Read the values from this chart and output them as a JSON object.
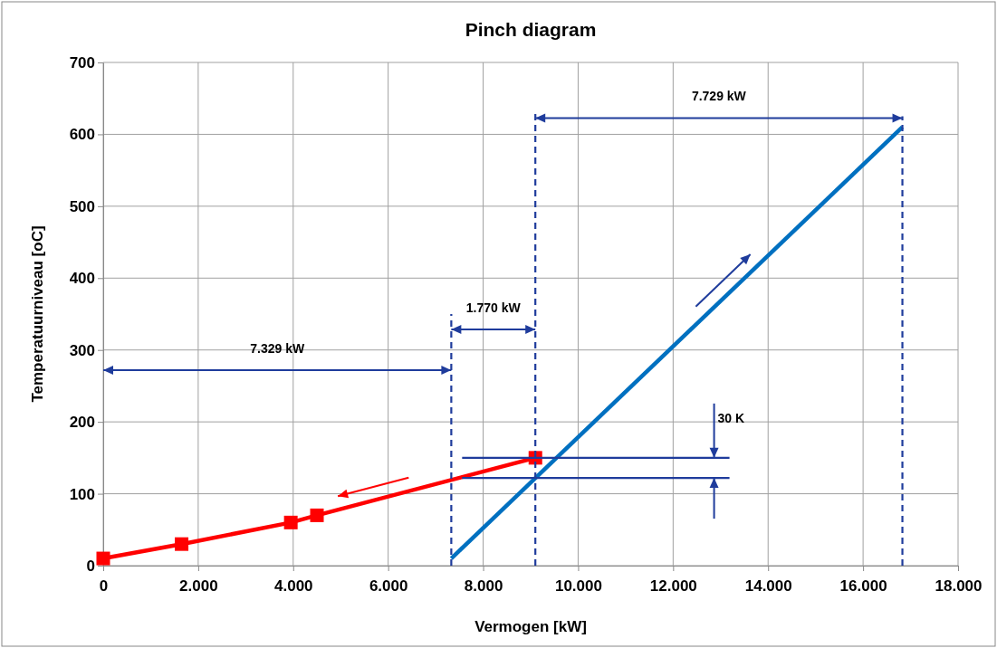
{
  "chart_data": {
    "type": "line",
    "title": "Pinch diagram",
    "xlabel": "Vermogen [kW]",
    "ylabel": "Temperatuurniveau [oC]",
    "xlim": [
      0,
      18000
    ],
    "xticks": [
      0,
      {
        "value": 2000,
        "label": "2.000"
      },
      {
        "value": 4000,
        "label": "4.000"
      },
      {
        "value": 6000,
        "label": "6.000"
      },
      {
        "value": 8000,
        "label": "8.000"
      },
      {
        "value": 10000,
        "label": "10.000"
      },
      {
        "value": 12000,
        "label": "12.000"
      },
      {
        "value": 14000,
        "label": "14.000"
      },
      {
        "value": 16000,
        "label": "16.000"
      },
      {
        "value": 18000,
        "label": "18.000"
      }
    ],
    "ylim": [
      0,
      700
    ],
    "yticks": [
      0,
      100,
      200,
      300,
      400,
      500,
      600,
      700
    ],
    "grid": true,
    "series": [
      {
        "color": "#ff0000",
        "marker": "square",
        "x": [
          0,
          1650,
          3950,
          4500,
          9100
        ],
        "values": [
          10,
          30,
          60,
          70,
          150
        ]
      },
      {
        "color": "#0070c0",
        "x": [
          7329,
          16828
        ],
        "values": [
          10,
          610
        ]
      },
      {
        "color": "#1f3c9c",
        "line_style": "dashed",
        "marker": "none",
        "x": [
          7329,
          7329
        ],
        "values": [
          0,
          350
        ]
      },
      {
        "color": "#1f3c9c",
        "line_style": "dashed",
        "marker": "none",
        "x": [
          9099,
          9099
        ],
        "values": [
          0,
          633
        ]
      },
      {
        "color": "#1f3c9c",
        "line_style": "dashed",
        "marker": "none",
        "x": [
          16828,
          16828
        ],
        "values": [
          0,
          625
        ]
      },
      {
        "color": "#1f3c9c",
        "marker": "none",
        "x": [
          7557,
          13187
        ],
        "values": [
          150,
          150
        ]
      },
      {
        "color": "#1f3c9c",
        "marker": "none",
        "x": [
          7557,
          13187
        ],
        "values": [
          122,
          122
        ]
      }
    ],
    "annotations": [
      "7.329 kW",
      "1.770 kW",
      "7.729 kW",
      {
        "text": "30 K",
        "x": 12860,
        "y": 150
      }
    ]
  }
}
